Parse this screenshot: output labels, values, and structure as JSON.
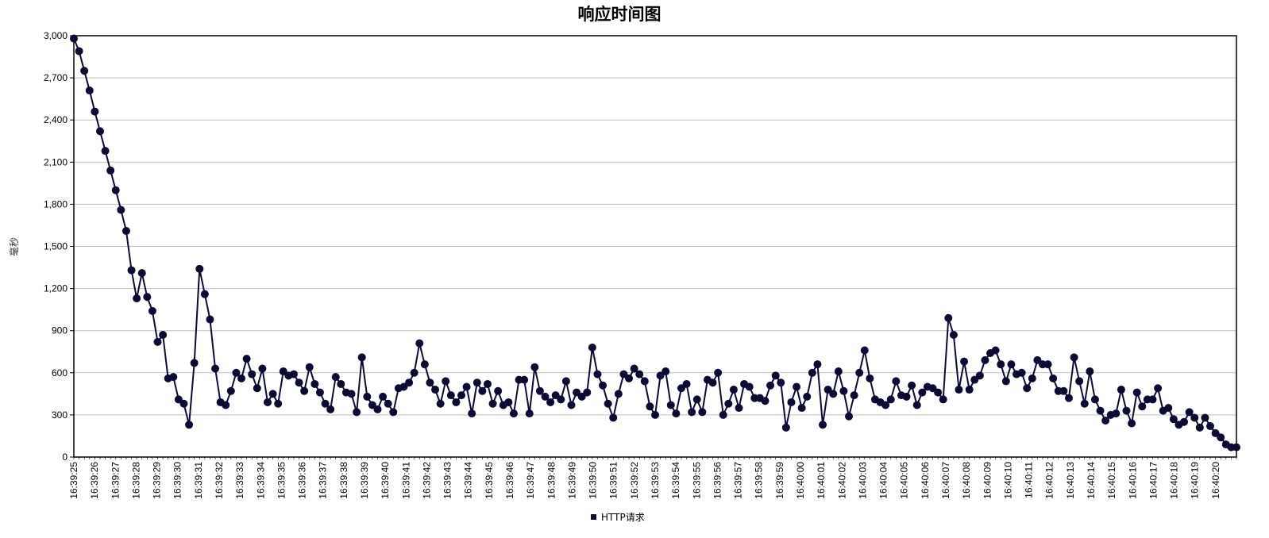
{
  "chart_data": {
    "type": "line",
    "title": "响应时间图",
    "xlabel": "",
    "ylabel": "毫秒",
    "ylim": [
      0,
      3000
    ],
    "yticks": [
      0,
      300,
      600,
      900,
      1200,
      1500,
      1800,
      2100,
      2400,
      2700,
      3000
    ],
    "ytick_labels": [
      "0",
      "300",
      "600",
      "900",
      "1,200",
      "1,500",
      "1,800",
      "2,100",
      "2,400",
      "2,700",
      "3,000"
    ],
    "x_tick_labels": [
      "16:39:25",
      "16:39:26",
      "16:39:27",
      "16:39:28",
      "16:39:29",
      "16:39:30",
      "16:39:31",
      "16:39:32",
      "16:39:33",
      "16:39:34",
      "16:39:35",
      "16:39:36",
      "16:39:37",
      "16:39:38",
      "16:39:39",
      "16:39:40",
      "16:39:41",
      "16:39:42",
      "16:39:43",
      "16:39:44",
      "16:39:45",
      "16:39:46",
      "16:39:47",
      "16:39:48",
      "16:39:49",
      "16:39:50",
      "16:39:51",
      "16:39:52",
      "16:39:53",
      "16:39:54",
      "16:39:55",
      "16:39:56",
      "16:39:57",
      "16:39:58",
      "16:39:59",
      "16:40:00",
      "16:40:01",
      "16:40:02",
      "16:40:03",
      "16:40:04",
      "16:40:05",
      "16:40:06",
      "16:40:07",
      "16:40:08",
      "16:40:09",
      "16:40:10",
      "16:40:11",
      "16:40:12",
      "16:40:13",
      "16:40:14",
      "16:40:15",
      "16:40:16",
      "16:40:17",
      "16:40:18",
      "16:40:19",
      "16:40:20"
    ],
    "grid": true,
    "legend": "bottom-center",
    "colors": {
      "series": "#0a0a33",
      "grid": "#bfbfbf",
      "axis": "#000000"
    },
    "series": [
      {
        "name": "HTTP请求",
        "values": [
          2980,
          2890,
          2750,
          2610,
          2460,
          2320,
          2180,
          2040,
          1900,
          1760,
          1610,
          1330,
          1130,
          1310,
          1140,
          1040,
          820,
          870,
          560,
          570,
          410,
          380,
          230,
          670,
          1340,
          1160,
          980,
          630,
          390,
          370,
          470,
          600,
          560,
          700,
          590,
          490,
          630,
          390,
          450,
          380,
          610,
          580,
          590,
          530,
          470,
          640,
          520,
          460,
          380,
          340,
          570,
          520,
          460,
          450,
          320,
          710,
          430,
          370,
          340,
          430,
          380,
          320,
          490,
          500,
          530,
          600,
          810,
          660,
          530,
          480,
          380,
          540,
          440,
          390,
          440,
          500,
          310,
          530,
          470,
          520,
          380,
          470,
          370,
          390,
          310,
          550,
          550,
          310,
          640,
          470,
          430,
          390,
          440,
          410,
          540,
          370,
          460,
          430,
          460,
          780,
          590,
          510,
          380,
          280,
          450,
          590,
          560,
          630,
          590,
          540,
          360,
          300,
          580,
          610,
          370,
          310,
          490,
          520,
          320,
          410,
          320,
          550,
          530,
          600,
          300,
          380,
          480,
          350,
          520,
          500,
          420,
          420,
          400,
          510,
          580,
          530,
          210,
          390,
          500,
          350,
          430,
          600,
          660,
          230,
          480,
          450,
          610,
          470,
          290,
          440,
          600,
          760,
          560,
          410,
          390,
          370,
          410,
          540,
          440,
          430,
          510,
          370,
          460,
          500,
          490,
          460,
          410,
          990,
          870,
          480,
          680,
          480,
          550,
          580,
          690,
          740,
          760,
          660,
          540,
          660,
          590,
          600,
          490,
          560,
          690,
          660,
          660,
          560,
          470,
          470,
          420,
          710,
          540,
          380,
          610,
          410,
          330,
          260,
          300,
          310,
          480,
          330,
          240,
          460,
          360,
          410,
          410,
          490,
          330,
          350,
          270,
          230,
          250,
          320,
          280,
          210,
          280,
          220,
          170,
          140,
          90,
          70,
          70
        ]
      }
    ]
  }
}
